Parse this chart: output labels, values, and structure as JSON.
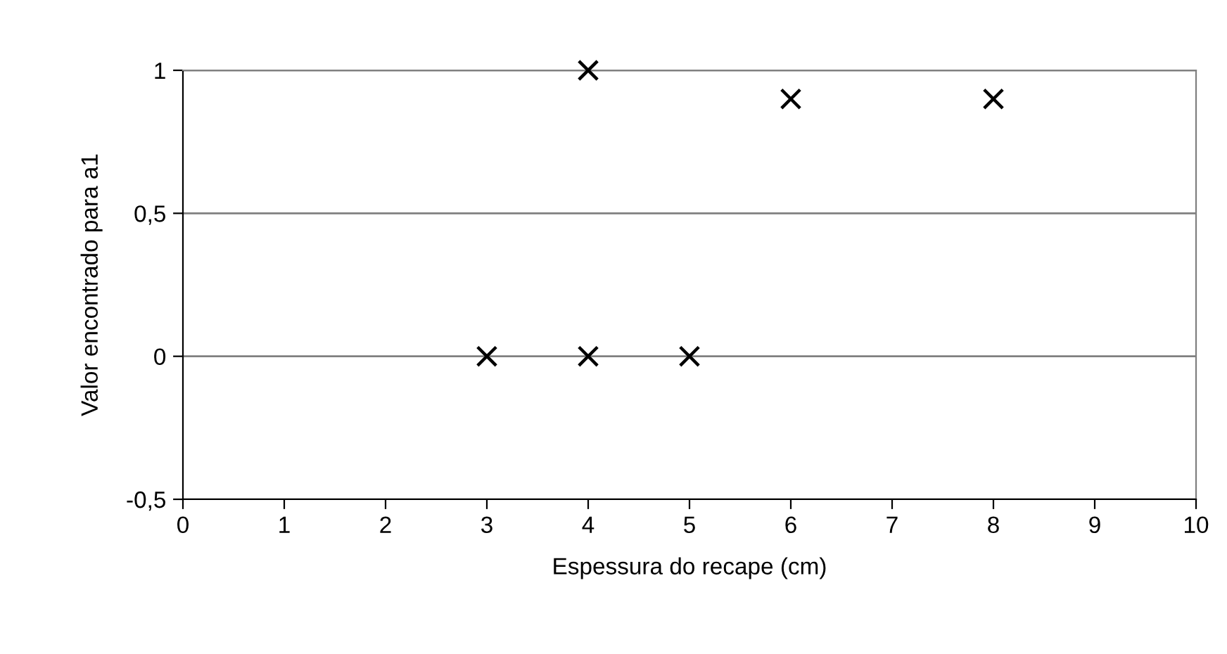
{
  "chart_data": {
    "type": "scatter",
    "xlabel": "Espessura do recape (cm)",
    "ylabel": "Valor encontrado para a1",
    "x": [
      3,
      4,
      5,
      4,
      6,
      8
    ],
    "values": [
      0,
      0,
      0,
      1,
      0.9,
      0.9
    ],
    "color": "#000000",
    "marker": "cross",
    "xlim": [
      0,
      10
    ],
    "xticks": [
      0,
      1,
      2,
      3,
      4,
      5,
      6,
      7,
      8,
      9,
      10
    ],
    "ylim": [
      -0.5,
      1
    ],
    "yticks": [
      {
        "value": -0.5,
        "label": "-0,5"
      },
      0,
      {
        "value": 0.5,
        "label": "0,5"
      },
      1
    ],
    "grid": "y",
    "legend": false
  }
}
